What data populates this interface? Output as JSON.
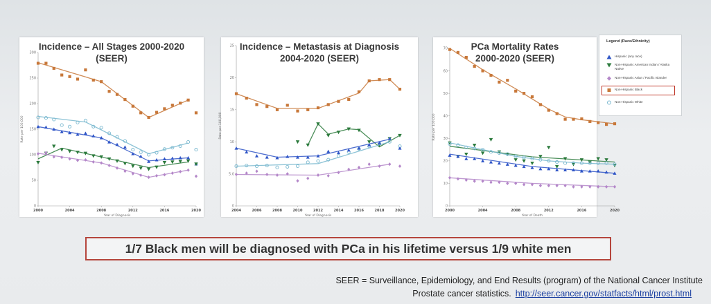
{
  "chart_data": [
    {
      "type": "line",
      "title": "Incidence – All Stages 2000-2020\n(SEER)",
      "xlabel": "Year of Diagnosis",
      "ylabel": "Rate per 100,000",
      "xlim": [
        2000,
        2020
      ],
      "ylim": [
        0,
        300
      ],
      "xticks": [
        "2000",
        "2004",
        "2008",
        "2012",
        "2016",
        "2020"
      ],
      "yticks": [
        "0",
        "50",
        "100",
        "150",
        "200",
        "250",
        "300"
      ],
      "x": [
        2000,
        2001,
        2002,
        2003,
        2004,
        2005,
        2006,
        2007,
        2008,
        2009,
        2010,
        2011,
        2012,
        2013,
        2014,
        2015,
        2016,
        2017,
        2018,
        2019,
        2020
      ],
      "series": [
        {
          "name": "Non-Hispanic Black",
          "color": "#c8783a",
          "marker": "square",
          "values": [
            279,
            279,
            269,
            256,
            253,
            248,
            266,
            246,
            243,
            224,
            218,
            208,
            195,
            182,
            173,
            183,
            190,
            197,
            201,
            207,
            182
          ],
          "trend": [
            [
              2000,
              280
            ],
            [
              2008,
              243
            ],
            [
              2014,
              173
            ],
            [
              2019,
              207
            ]
          ]
        },
        {
          "name": "Non-Hispanic White",
          "color": "#79b8cf",
          "marker": "circle-open",
          "values": [
            173,
            172,
            169,
            158,
            155,
            163,
            167,
            155,
            153,
            142,
            135,
            127,
            110,
            105,
            100,
            104,
            111,
            114,
            117,
            125,
            110
          ],
          "trend": [
            [
              2000,
              175
            ],
            [
              2006,
              164
            ],
            [
              2014,
              102
            ],
            [
              2019,
              123
            ]
          ]
        },
        {
          "name": "Hispanic (any race)",
          "color": "#2f55c7",
          "marker": "triangle-up",
          "values": [
            155,
            154,
            150,
            145,
            143,
            140,
            142,
            137,
            133,
            125,
            120,
            115,
            102,
            97,
            87,
            90,
            92,
            93,
            94,
            94,
            82
          ],
          "trend": [
            [
              2000,
              155
            ],
            [
              2008,
              133
            ],
            [
              2014,
              88
            ],
            [
              2019,
              94
            ]
          ]
        },
        {
          "name": "Non-Hispanic American Indian / Alaska Native",
          "color": "#2b7a3c",
          "marker": "triangle-down",
          "values": [
            85,
            103,
            117,
            110,
            107,
            105,
            103,
            98,
            96,
            92,
            88,
            83,
            78,
            74,
            72,
            76,
            85,
            86,
            87,
            88,
            82
          ],
          "trend": [
            [
              2000,
              92
            ],
            [
              2003,
              113
            ],
            [
              2014,
              75
            ],
            [
              2019,
              86
            ]
          ]
        },
        {
          "name": "Non-Hispanic Asian / Pacific Islander",
          "color": "#b487c9",
          "marker": "diamond",
          "values": [
            102,
            104,
            96,
            95,
            92,
            89,
            90,
            86,
            84,
            79,
            74,
            68,
            63,
            60,
            56,
            59,
            61,
            64,
            67,
            70,
            58
          ],
          "trend": [
            [
              2000,
              103
            ],
            [
              2008,
              84
            ],
            [
              2014,
              56
            ],
            [
              2019,
              70
            ]
          ]
        }
      ]
    },
    {
      "type": "line",
      "title": "Incidence – Metastasis at Diagnosis\n2004-2020 (SEER)",
      "xlabel": "Year of Diagnosis",
      "ylabel": "Rate per 100,000",
      "xlim": [
        2004,
        2020
      ],
      "ylim": [
        0,
        25
      ],
      "xticks": [
        "2004",
        "2006",
        "2008",
        "2010",
        "2012",
        "2014",
        "2016",
        "2018",
        "2020"
      ],
      "yticks": [
        "0",
        "5.0",
        "10",
        "15",
        "20",
        "25"
      ],
      "x": [
        2004,
        2005,
        2006,
        2007,
        2008,
        2009,
        2010,
        2011,
        2012,
        2013,
        2014,
        2015,
        2016,
        2017,
        2018,
        2019,
        2020
      ],
      "series": [
        {
          "name": "Non-Hispanic Black",
          "color": "#c8783a",
          "marker": "square",
          "values": [
            17.5,
            16.8,
            15.8,
            15.5,
            15.0,
            15.7,
            14.8,
            15.0,
            15.3,
            15.8,
            16.3,
            16.6,
            17.8,
            19.5,
            19.7,
            19.7,
            18.2
          ],
          "trend": [
            [
              2004,
              17.5
            ],
            [
              2008,
              15.2
            ],
            [
              2012,
              15.2
            ],
            [
              2016,
              17.6
            ],
            [
              2017,
              19.5
            ],
            [
              2019,
              19.7
            ],
            [
              2020,
              18.2
            ]
          ]
        },
        {
          "name": "Non-Hispanic American Indian / Alaska Native",
          "color": "#2b7a3c",
          "marker": "triangle-down",
          "values": [
            null,
            null,
            null,
            null,
            null,
            null,
            10.0,
            9.5,
            12.8,
            11.0,
            11.5,
            12.0,
            11.8,
            10.0,
            9.5,
            10.5,
            11.0
          ],
          "trend": [
            [
              2011,
              9.5
            ],
            [
              2012,
              12.8
            ],
            [
              2013,
              11.2
            ],
            [
              2015,
              12.0
            ],
            [
              2016,
              11.9
            ],
            [
              2018,
              9.2
            ],
            [
              2020,
              11.0
            ]
          ]
        },
        {
          "name": "Non-Hispanic White",
          "color": "#79b8cf",
          "marker": "circle-open",
          "values": [
            6.2,
            6.3,
            6.2,
            6.3,
            6.0,
            6.1,
            6.2,
            6.8,
            7.0,
            7.2,
            7.8,
            8.4,
            8.9,
            9.3,
            9.8,
            10.0,
            9.3
          ],
          "trend": [
            [
              2004,
              6.2
            ],
            [
              2012,
              6.6
            ],
            [
              2019,
              10.0
            ]
          ]
        },
        {
          "name": "Hispanic (any race)",
          "color": "#2f55c7",
          "marker": "triangle-up",
          "values": [
            9.0,
            8.4,
            7.8,
            7.6,
            7.5,
            7.7,
            7.6,
            7.6,
            7.8,
            8.5,
            8.3,
            8.7,
            9.0,
            9.5,
            9.8,
            10.5,
            9.0
          ],
          "trend": [
            [
              2004,
              9.0
            ],
            [
              2008,
              7.6
            ],
            [
              2012,
              7.8
            ],
            [
              2019,
              10.4
            ]
          ]
        },
        {
          "name": "Non-Hispanic Asian / Pacific Islander",
          "color": "#b487c9",
          "marker": "diamond",
          "values": [
            4.9,
            5.1,
            5.4,
            4.9,
            4.8,
            5.0,
            3.9,
            4.3,
            4.8,
            4.7,
            5.2,
            5.7,
            6.0,
            6.5,
            6.2,
            6.5,
            6.2
          ],
          "trend": [
            [
              2004,
              4.9
            ],
            [
              2012,
              4.8
            ],
            [
              2019,
              6.5
            ]
          ]
        }
      ]
    },
    {
      "type": "line",
      "title": "PCa Mortality Rates\n2000-2020 (SEER)",
      "xlabel": "Year of Death",
      "ylabel": "Rate per 100,000",
      "xlim": [
        2000,
        2020
      ],
      "ylim": [
        0,
        70
      ],
      "xticks": [
        "2000",
        "2004",
        "2008",
        "2012",
        "2016",
        "2020"
      ],
      "yticks": [
        "0",
        "10",
        "20",
        "30",
        "40",
        "50",
        "60",
        "70"
      ],
      "x": [
        2000,
        2001,
        2002,
        2003,
        2004,
        2005,
        2006,
        2007,
        2008,
        2009,
        2010,
        2011,
        2012,
        2013,
        2014,
        2015,
        2016,
        2017,
        2018,
        2019,
        2020
      ],
      "series": [
        {
          "name": "Non-Hispanic Black",
          "color": "#c8783a",
          "marker": "square",
          "values": [
            69.5,
            68.2,
            66.0,
            62.0,
            60.0,
            58.0,
            55.0,
            55.8,
            51.0,
            50.0,
            48.5,
            45.0,
            42.5,
            41.0,
            38.5,
            38.5,
            38.7,
            37.5,
            37.0,
            36.2,
            36.5
          ],
          "trend": [
            [
              2000,
              70.0
            ],
            [
              2004,
              60.5
            ],
            [
              2008,
              52.0
            ],
            [
              2012,
              43.0
            ],
            [
              2014,
              39.5
            ],
            [
              2016,
              38.3
            ],
            [
              2020,
              36.5
            ]
          ]
        },
        {
          "name": "Non-Hispanic American Indian / Alaska Native",
          "color": "#2b7a3c",
          "marker": "triangle-down",
          "values": [
            28.0,
            22.0,
            23.0,
            27.0,
            23.5,
            29.5,
            24.0,
            23.0,
            20.5,
            20.0,
            19.0,
            22.0,
            26.0,
            17.5,
            21.0,
            18.5,
            20.5,
            19.5,
            21.0,
            20.5,
            18.0
          ],
          "trend": [
            [
              2000,
              26.5
            ],
            [
              2010,
              21.8
            ],
            [
              2020,
              19.5
            ]
          ]
        },
        {
          "name": "Non-Hispanic White",
          "color": "#79b8cf",
          "marker": "circle-open",
          "values": [
            27.5,
            27.0,
            26.0,
            25.5,
            25.0,
            24.0,
            23.5,
            23.0,
            22.0,
            21.5,
            21.0,
            20.5,
            20.0,
            19.5,
            19.0,
            19.0,
            19.0,
            19.0,
            19.0,
            19.0,
            18.5
          ],
          "trend": [
            [
              2000,
              28.0
            ],
            [
              2004,
              25.0
            ],
            [
              2008,
              22.0
            ],
            [
              2012,
              20.0
            ],
            [
              2016,
              19.0
            ],
            [
              2020,
              18.5
            ]
          ]
        },
        {
          "name": "Hispanic (any race)",
          "color": "#2f55c7",
          "marker": "triangle-up",
          "values": [
            22.5,
            22.0,
            21.0,
            21.0,
            20.0,
            19.5,
            19.0,
            18.5,
            18.0,
            17.5,
            17.0,
            16.5,
            16.5,
            16.0,
            16.0,
            16.0,
            15.5,
            15.5,
            15.5,
            15.0,
            14.5
          ],
          "trend": [
            [
              2000,
              23.0
            ],
            [
              2010,
              17.5
            ],
            [
              2020,
              14.5
            ]
          ]
        },
        {
          "name": "Non-Hispanic Asian / Pacific Islander",
          "color": "#b487c9",
          "marker": "diamond",
          "values": [
            12.5,
            12.0,
            11.5,
            11.0,
            11.0,
            10.5,
            10.5,
            10.0,
            10.0,
            9.5,
            9.5,
            9.0,
            9.0,
            9.0,
            9.0,
            8.5,
            8.5,
            8.5,
            8.5,
            8.5,
            8.5
          ],
          "trend": [
            [
              2000,
              12.5
            ],
            [
              2010,
              10.0
            ],
            [
              2020,
              8.5
            ]
          ]
        }
      ]
    }
  ],
  "legend": {
    "title": "Legend (Race/Ethnicity)",
    "items": [
      {
        "label": "Hispanic (any race)",
        "marker": "triangle-up",
        "color": "#2f55c7"
      },
      {
        "label": "Non-Hispanic American Indian / Alaska Native",
        "marker": "triangle-down",
        "color": "#2b7a3c"
      },
      {
        "label": "Non-Hispanic Asian / Pacific Islander",
        "marker": "diamond",
        "color": "#b487c9"
      },
      {
        "label": "Non-Hispanic Black",
        "marker": "square",
        "color": "#c8783a"
      },
      {
        "label": "Non-Hispanic White",
        "marker": "circle-open",
        "color": "#79b8cf"
      }
    ]
  },
  "callout": "1/7 Black men will be diagnosed with PCa in his lifetime versus 1/9 white men",
  "footer": {
    "line1": "SEER = Surveillance, Epidemiology, and End Results (program) of the National Cancer Institute",
    "line2": "Prostate cancer statistics.",
    "link": "http://seer.cancer.gov/statfacts/html/prost.html"
  }
}
